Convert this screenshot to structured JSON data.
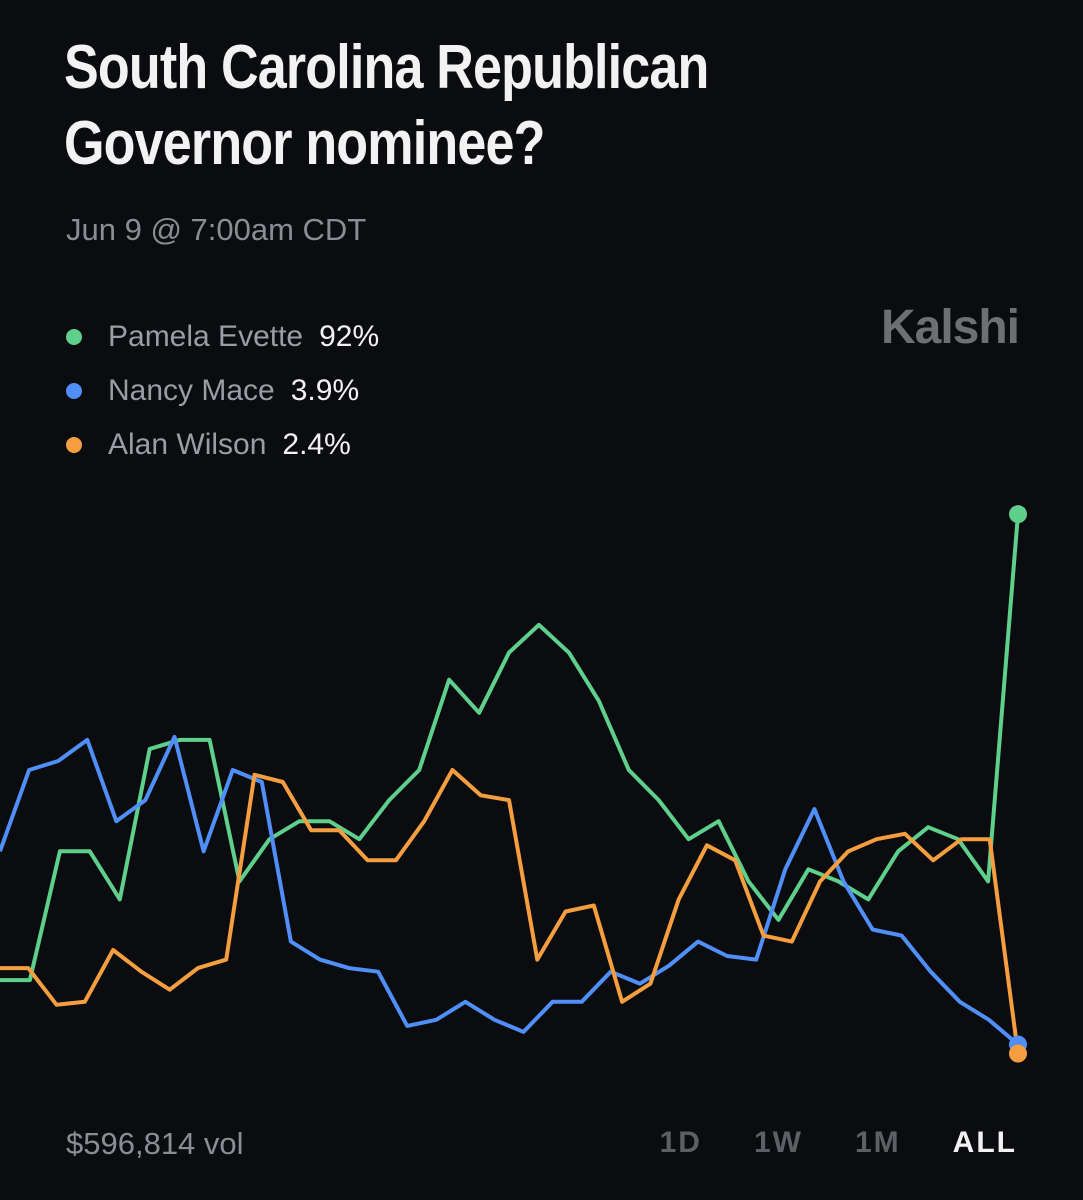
{
  "chart_data": {
    "type": "line",
    "title": "South Carolina Republican Governor nominee?",
    "subtitle": "Jun 9 @ 7:00am CDT",
    "brand": "Kalshi",
    "volume": "$596,814 vol",
    "ranges": [
      "1D",
      "1W",
      "1M",
      "ALL"
    ],
    "selected_range": "ALL",
    "ylim": [
      0,
      100
    ],
    "series": [
      {
        "name": "Pamela Evette",
        "color": "#5fcf8c",
        "legend_label": "92%",
        "values": [
          14.6,
          14.6,
          36,
          36,
          28,
          53,
          54.5,
          54.5,
          31,
          38,
          41,
          41,
          38,
          44.5,
          49.5,
          64.5,
          59,
          69,
          73.6,
          69,
          61,
          49.5,
          44.5,
          38,
          41,
          31,
          24.6,
          33,
          31,
          28,
          36,
          40,
          38,
          31,
          92
        ]
      },
      {
        "name": "Nancy Mace",
        "color": "#4f8ff7",
        "legend_label": "3.9%",
        "values": [
          36,
          49.5,
          51,
          54.5,
          41,
          44.5,
          55,
          36,
          49.5,
          47.5,
          21,
          18,
          16.6,
          16,
          7,
          8,
          11,
          8,
          6,
          11,
          11,
          16,
          14,
          17,
          21,
          18.6,
          18,
          33,
          43,
          31,
          23,
          22,
          16,
          11,
          8,
          3.9
        ]
      },
      {
        "name": "Alan Wilson",
        "color": "#f59e3f",
        "legend_label": "2.4%",
        "values": [
          16.6,
          16.6,
          10.5,
          11,
          19.6,
          16,
          13,
          16.6,
          18,
          48.7,
          47.5,
          39.5,
          39.5,
          34.5,
          34.5,
          41,
          49.5,
          45.3,
          44.5,
          18,
          26,
          27,
          11,
          14,
          28,
          37,
          34.5,
          22,
          21,
          31,
          36,
          38,
          38.9,
          34.5,
          38,
          38,
          2.4
        ]
      }
    ]
  }
}
